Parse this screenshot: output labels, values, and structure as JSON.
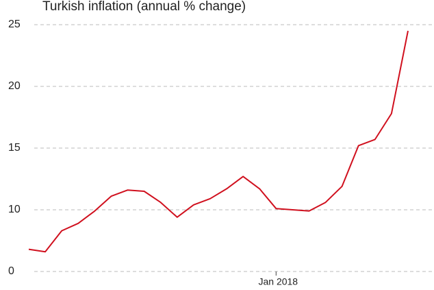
{
  "chart_data": {
    "type": "line",
    "title": "Turkish inflation (annual % change)",
    "categories": [
      null,
      null,
      null,
      null,
      null,
      null,
      null,
      null,
      null,
      null,
      null,
      null,
      null,
      null,
      null,
      "Jan 2018",
      null,
      null,
      null,
      null,
      null,
      null,
      null,
      null
    ],
    "series": [
      {
        "name": "Turkish inflation",
        "color": "#d0101e",
        "values": [
          6.8,
          6.6,
          8.3,
          8.9,
          9.9,
          11.1,
          11.6,
          11.5,
          10.6,
          9.4,
          10.4,
          10.9,
          11.7,
          12.7,
          11.7,
          10.1,
          10.0,
          9.9,
          10.6,
          11.9,
          15.2,
          15.7,
          17.8,
          24.5
        ]
      }
    ],
    "ylim": [
      5,
      25
    ],
    "yticks": [
      0,
      10,
      15,
      20,
      25
    ],
    "y_axis_break": true,
    "grid": true
  }
}
